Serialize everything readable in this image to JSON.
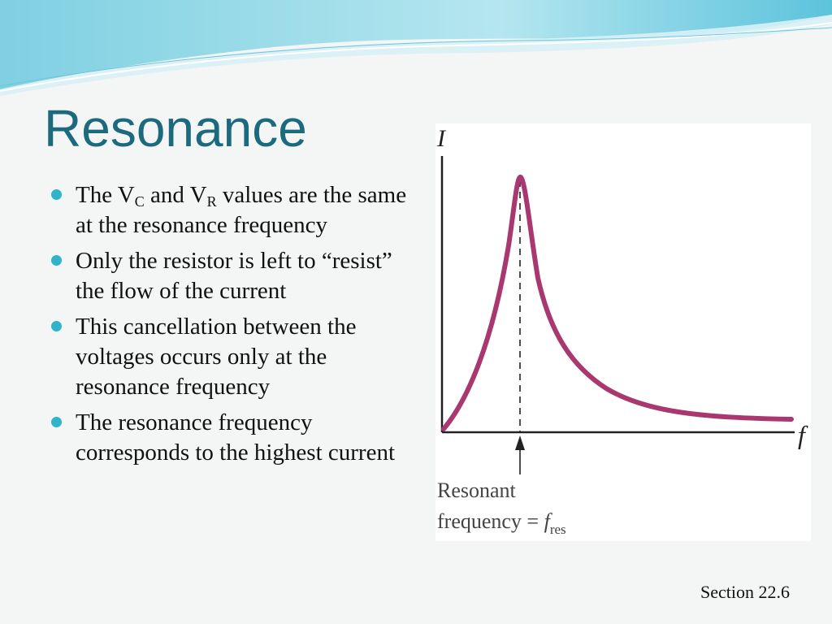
{
  "title": "Resonance",
  "bullets": [
    {
      "pre": "The V",
      "sub1": "C",
      "mid": " and V",
      "sub2": "R",
      "post": " values are the same at the resonance frequency"
    },
    {
      "text": "Only the resistor is left to “resist” the flow of the current"
    },
    {
      "text": "This cancellation between the voltages occurs only at the resonance frequency"
    },
    {
      "text": "The resonance frequency corresponds to the highest current"
    }
  ],
  "figure": {
    "y_axis_label": "I",
    "x_axis_label": "f",
    "annotation_line1": "Resonant",
    "annotation_line2_pre": "frequency = ",
    "annotation_var": "f",
    "annotation_sub": "res"
  },
  "footer": "Section 22.6",
  "colors": {
    "title": "#1b6a7e",
    "bullet": "#2fb4c9",
    "curve": "#a8386f",
    "wave": "#8fd6e6"
  }
}
